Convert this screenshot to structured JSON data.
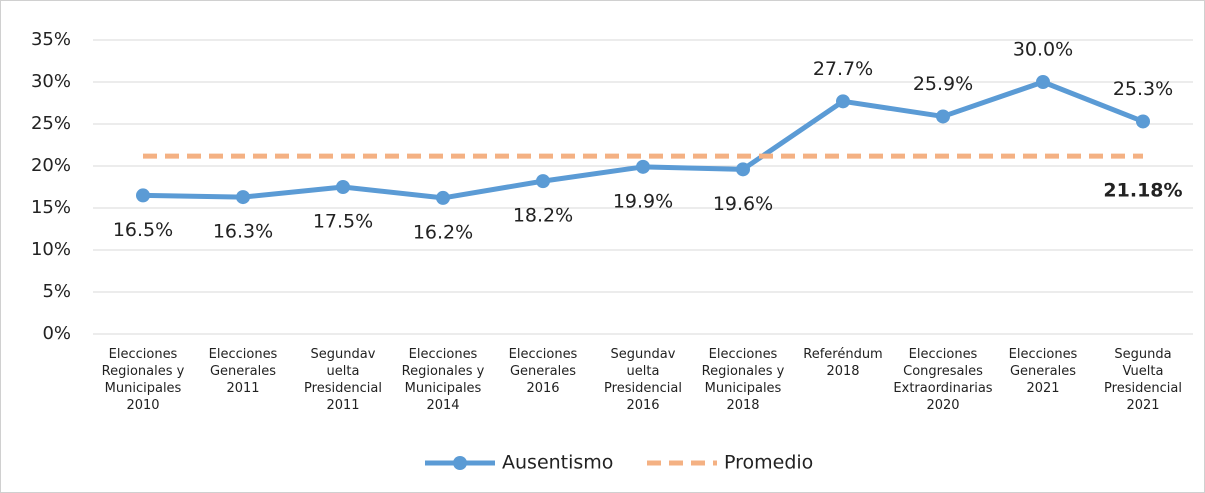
{
  "chart_data": {
    "type": "line",
    "categories": [
      "Elecciones Regionales y Municipales 2010",
      "Elecciones Generales 2011",
      "Segundav uelta Presidencial 2011",
      "Elecciones Regionales y Municipales 2014",
      "Elecciones Generales 2016",
      "Segundav uelta Presidencial 2016",
      "Elecciones Regionales y Municipales 2018",
      "Referéndum 2018",
      "Elecciones Congresales Extraordinarias 2020",
      "Elecciones Generales 2021",
      "Segunda Vuelta Presidencial 2021"
    ],
    "series": [
      {
        "name": "Ausentismo",
        "color": "#5b9bd5",
        "values": [
          16.5,
          16.3,
          17.5,
          16.2,
          18.2,
          19.9,
          19.6,
          27.7,
          25.9,
          30.0,
          25.3
        ],
        "value_labels": [
          "16.5%",
          "16.3%",
          "17.5%",
          "16.2%",
          "18.2%",
          "19.9%",
          "19.6%",
          "27.7%",
          "25.9%",
          "30.0%",
          "25.3%"
        ]
      },
      {
        "name": "Promedio",
        "color": "#f4b183",
        "dashed": true,
        "values": [
          21.18,
          21.18,
          21.18,
          21.18,
          21.18,
          21.18,
          21.18,
          21.18,
          21.18,
          21.18,
          21.18
        ],
        "value_labels": [
          null,
          null,
          null,
          null,
          null,
          null,
          null,
          null,
          null,
          null,
          "21.18%"
        ],
        "label_color": "#c55a11"
      }
    ],
    "ylim": [
      0,
      35
    ],
    "yticks": [
      {
        "value": 0,
        "label": "0%"
      },
      {
        "value": 5,
        "label": "5%"
      },
      {
        "value": 10,
        "label": "10%"
      },
      {
        "value": 15,
        "label": "15%"
      },
      {
        "value": 20,
        "label": "20%"
      },
      {
        "value": 25,
        "label": "25%"
      },
      {
        "value": 30,
        "label": "30%"
      },
      {
        "value": 35,
        "label": "35%"
      }
    ],
    "grid": true,
    "legend": "bottom"
  }
}
